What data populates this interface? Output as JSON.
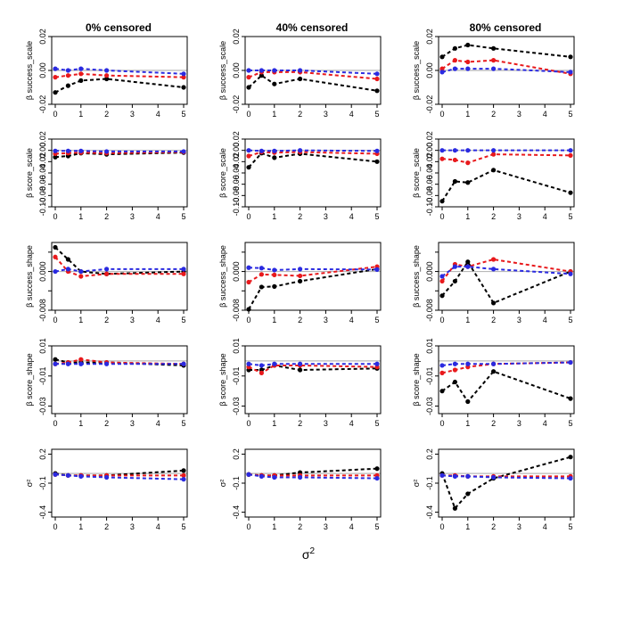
{
  "figure": {
    "column_titles": [
      "0% censored",
      "40% censored",
      "80% censored"
    ],
    "row_labels": [
      "β success_scale",
      "β score_scale",
      "β success_shape",
      "β score_shape",
      "σ²"
    ],
    "xlabel": "σ",
    "xlabel_superscript": "2"
  },
  "colors": {
    "series_black": "#000000",
    "series_red": "#e8191c",
    "series_blue": "#2a2ae0",
    "reference_line": "#b8b8b8",
    "frame": "#000000"
  },
  "chart_data": [
    {
      "type": "line",
      "row": 0,
      "col": 0,
      "title": "0% censored",
      "ylabel": "β success_scale",
      "x": [
        0,
        0.5,
        1,
        2,
        5
      ],
      "ylim": [
        -0.02,
        0.02
      ],
      "yticks": [
        -0.02,
        0.0,
        0.02
      ],
      "ytick_labels": [
        "-0.02",
        "0.00",
        "0.02"
      ],
      "xticks": [
        0,
        1,
        2,
        3,
        4,
        5
      ],
      "reference": 0,
      "series": [
        {
          "name": "black",
          "color": "#000000",
          "values": [
            -0.013,
            -0.009,
            -0.006,
            -0.005,
            -0.01
          ]
        },
        {
          "name": "red",
          "color": "#e8191c",
          "values": [
            -0.004,
            -0.003,
            -0.002,
            -0.003,
            -0.004
          ]
        },
        {
          "name": "blue",
          "color": "#2a2ae0",
          "values": [
            0.001,
            0.0,
            0.001,
            0.0,
            -0.002
          ]
        }
      ]
    },
    {
      "type": "line",
      "row": 0,
      "col": 1,
      "title": "40% censored",
      "ylabel": "β success_scale",
      "x": [
        0,
        0.5,
        1,
        2,
        5
      ],
      "ylim": [
        -0.02,
        0.02
      ],
      "yticks": [
        -0.02,
        0.0,
        0.02
      ],
      "ytick_labels": [
        "-0.02",
        "0.00",
        "0.02"
      ],
      "xticks": [
        0,
        1,
        2,
        3,
        4,
        5
      ],
      "reference": 0,
      "series": [
        {
          "name": "black",
          "color": "#000000",
          "values": [
            -0.01,
            -0.003,
            -0.008,
            -0.005,
            -0.012
          ]
        },
        {
          "name": "red",
          "color": "#e8191c",
          "values": [
            -0.004,
            -0.001,
            -0.001,
            -0.001,
            -0.005
          ]
        },
        {
          "name": "blue",
          "color": "#2a2ae0",
          "values": [
            0.0,
            0.0,
            0.0,
            0.0,
            -0.002
          ]
        }
      ]
    },
    {
      "type": "line",
      "row": 0,
      "col": 2,
      "title": "80% censored",
      "ylabel": "β success_scale",
      "x": [
        0,
        0.5,
        1,
        2,
        5
      ],
      "ylim": [
        -0.02,
        0.02
      ],
      "yticks": [
        -0.02,
        0.0,
        0.02
      ],
      "ytick_labels": [
        "-0.02",
        "0.00",
        "0.02"
      ],
      "xticks": [
        0,
        1,
        2,
        3,
        4,
        5
      ],
      "reference": 0,
      "series": [
        {
          "name": "black",
          "color": "#000000",
          "values": [
            0.008,
            0.013,
            0.015,
            0.013,
            0.008
          ]
        },
        {
          "name": "red",
          "color": "#e8191c",
          "values": [
            0.001,
            0.006,
            0.005,
            0.006,
            -0.002
          ]
        },
        {
          "name": "blue",
          "color": "#2a2ae0",
          "values": [
            -0.001,
            0.001,
            0.001,
            0.001,
            -0.001
          ]
        }
      ]
    },
    {
      "type": "line",
      "row": 1,
      "col": 0,
      "title": "0% censored",
      "ylabel": "β score_scale",
      "x": [
        0,
        0.5,
        1,
        2,
        5
      ],
      "ylim": [
        -0.1,
        0.02
      ],
      "yticks": [
        -0.1,
        -0.08,
        -0.06,
        -0.04,
        -0.02,
        0.0,
        0.02
      ],
      "ytick_labels": [
        "-0.10",
        "-0.08",
        "-0.06",
        "-0.04",
        "-0.02",
        "0.00",
        "0.02"
      ],
      "xticks": [
        0,
        1,
        2,
        3,
        4,
        5
      ],
      "reference": 0,
      "series": [
        {
          "name": "black",
          "color": "#000000",
          "values": [
            -0.012,
            -0.01,
            -0.005,
            -0.007,
            -0.004
          ]
        },
        {
          "name": "red",
          "color": "#e8191c",
          "values": [
            -0.006,
            -0.005,
            -0.004,
            -0.005,
            -0.003
          ]
        },
        {
          "name": "blue",
          "color": "#2a2ae0",
          "values": [
            -0.001,
            -0.001,
            -0.001,
            -0.002,
            -0.002
          ]
        }
      ]
    },
    {
      "type": "line",
      "row": 1,
      "col": 1,
      "title": "40% censored",
      "ylabel": "β score_scale",
      "x": [
        0,
        0.5,
        1,
        2,
        5
      ],
      "ylim": [
        -0.1,
        0.02
      ],
      "yticks": [
        -0.1,
        -0.08,
        -0.06,
        -0.04,
        -0.02,
        0.0,
        0.02
      ],
      "ytick_labels": [
        "-0.10",
        "-0.08",
        "-0.06",
        "-0.04",
        "-0.02",
        "0.00",
        "0.02"
      ],
      "xticks": [
        0,
        1,
        2,
        3,
        4,
        5
      ],
      "reference": 0,
      "series": [
        {
          "name": "black",
          "color": "#000000",
          "values": [
            -0.03,
            -0.005,
            -0.013,
            -0.006,
            -0.02
          ]
        },
        {
          "name": "red",
          "color": "#e8191c",
          "values": [
            -0.01,
            -0.003,
            -0.004,
            -0.003,
            -0.006
          ]
        },
        {
          "name": "blue",
          "color": "#2a2ae0",
          "values": [
            0.0,
            -0.001,
            -0.001,
            0.0,
            -0.001
          ]
        }
      ]
    },
    {
      "type": "line",
      "row": 1,
      "col": 2,
      "title": "80% censored",
      "ylabel": "β score_scale",
      "x": [
        0,
        0.5,
        1,
        2,
        5
      ],
      "ylim": [
        -0.1,
        0.02
      ],
      "yticks": [
        -0.1,
        -0.08,
        -0.06,
        -0.04,
        -0.02,
        0.0,
        0.02
      ],
      "ytick_labels": [
        "-0.10",
        "-0.08",
        "-0.06",
        "-0.04",
        "-0.02",
        "0.00",
        "0.02"
      ],
      "xticks": [
        0,
        1,
        2,
        3,
        4,
        5
      ],
      "reference": 0,
      "series": [
        {
          "name": "black",
          "color": "#000000",
          "values": [
            -0.09,
            -0.055,
            -0.057,
            -0.035,
            -0.075
          ]
        },
        {
          "name": "red",
          "color": "#e8191c",
          "values": [
            -0.015,
            -0.017,
            -0.022,
            -0.007,
            -0.009
          ]
        },
        {
          "name": "blue",
          "color": "#2a2ae0",
          "values": [
            0.0,
            0.0,
            0.0,
            0.0,
            0.0
          ]
        }
      ]
    },
    {
      "type": "line",
      "row": 2,
      "col": 0,
      "title": "0% censored",
      "ylabel": "β success_shape",
      "x": [
        0,
        0.5,
        1,
        2,
        5
      ],
      "ylim": [
        -0.008,
        0.006
      ],
      "yticks": [
        -0.008,
        -0.004,
        0.0,
        0.004
      ],
      "ytick_labels": [
        "-0.008",
        "",
        "0.000",
        ""
      ],
      "xticks": [
        0,
        1,
        2,
        3,
        4,
        5
      ],
      "reference": 0,
      "series": [
        {
          "name": "black",
          "color": "#000000",
          "values": [
            0.005,
            0.0025,
            0.0,
            -0.0005,
            0.0
          ]
        },
        {
          "name": "red",
          "color": "#e8191c",
          "values": [
            0.003,
            0.0,
            -0.001,
            -0.0005,
            -0.0005
          ]
        },
        {
          "name": "blue",
          "color": "#2a2ae0",
          "values": [
            0.0,
            0.0005,
            0.0,
            0.0005,
            0.0005
          ]
        }
      ]
    },
    {
      "type": "line",
      "row": 2,
      "col": 1,
      "title": "40% censored",
      "ylabel": "β success_shape",
      "x": [
        0,
        0.5,
        1,
        2,
        5
      ],
      "ylim": [
        -0.008,
        0.006
      ],
      "yticks": [
        -0.008,
        -0.004,
        0.0,
        0.004
      ],
      "ytick_labels": [
        "-0.008",
        "",
        "0.000",
        ""
      ],
      "xticks": [
        0,
        1,
        2,
        3,
        4,
        5
      ],
      "reference": 0,
      "series": [
        {
          "name": "black",
          "color": "#000000",
          "values": [
            -0.0078,
            -0.0032,
            -0.0031,
            -0.002,
            0.0005
          ]
        },
        {
          "name": "red",
          "color": "#e8191c",
          "values": [
            -0.0022,
            -0.0006,
            -0.0007,
            -0.0009,
            0.001
          ]
        },
        {
          "name": "blue",
          "color": "#2a2ae0",
          "values": [
            0.0008,
            0.0007,
            0.0003,
            0.0005,
            0.0004
          ]
        }
      ]
    },
    {
      "type": "line",
      "row": 2,
      "col": 2,
      "title": "80% censored",
      "ylabel": "β success_shape",
      "x": [
        0,
        0.5,
        1,
        2,
        5
      ],
      "ylim": [
        -0.008,
        0.006
      ],
      "yticks": [
        -0.008,
        -0.004,
        0.0,
        0.004
      ],
      "ytick_labels": [
        "-0.008",
        "",
        "0.000",
        ""
      ],
      "xticks": [
        0,
        1,
        2,
        3,
        4,
        5
      ],
      "reference": 0,
      "series": [
        {
          "name": "black",
          "color": "#000000",
          "values": [
            -0.005,
            -0.002,
            0.002,
            -0.0065,
            0.0
          ]
        },
        {
          "name": "red",
          "color": "#e8191c",
          "values": [
            -0.002,
            0.0015,
            0.001,
            0.0025,
            0.0
          ]
        },
        {
          "name": "blue",
          "color": "#2a2ae0",
          "values": [
            -0.001,
            0.001,
            0.001,
            0.0005,
            -0.0005
          ]
        }
      ]
    },
    {
      "type": "line",
      "row": 3,
      "col": 0,
      "title": "0% censored",
      "ylabel": "β score_shape",
      "x": [
        0,
        0.5,
        1,
        2,
        5
      ],
      "ylim": [
        -0.035,
        0.01
      ],
      "yticks": [
        -0.03,
        -0.01,
        0.01
      ],
      "ytick_labels": [
        "-0.03",
        "-0.01",
        "0.01"
      ],
      "xticks": [
        0,
        1,
        2,
        3,
        4,
        5
      ],
      "reference": 0,
      "series": [
        {
          "name": "black",
          "color": "#000000",
          "values": [
            0.001,
            -0.001,
            -0.001,
            -0.001,
            -0.003
          ]
        },
        {
          "name": "red",
          "color": "#e8191c",
          "values": [
            -0.002,
            -0.001,
            0.001,
            -0.001,
            -0.002
          ]
        },
        {
          "name": "blue",
          "color": "#2a2ae0",
          "values": [
            -0.002,
            -0.002,
            -0.002,
            -0.002,
            -0.002
          ]
        }
      ]
    },
    {
      "type": "line",
      "row": 3,
      "col": 1,
      "title": "40% censored",
      "ylabel": "β score_shape",
      "x": [
        0,
        0.5,
        1,
        2,
        5
      ],
      "ylim": [
        -0.035,
        0.01
      ],
      "yticks": [
        -0.03,
        -0.01,
        0.01
      ],
      "ytick_labels": [
        "-0.03",
        "-0.01",
        "0.01"
      ],
      "xticks": [
        0,
        1,
        2,
        3,
        4,
        5
      ],
      "reference": 0,
      "series": [
        {
          "name": "black",
          "color": "#000000",
          "values": [
            -0.006,
            -0.006,
            -0.003,
            -0.006,
            -0.005
          ]
        },
        {
          "name": "red",
          "color": "#e8191c",
          "values": [
            -0.004,
            -0.008,
            -0.003,
            -0.003,
            -0.004
          ]
        },
        {
          "name": "blue",
          "color": "#2a2ae0",
          "values": [
            -0.002,
            -0.003,
            -0.002,
            -0.002,
            -0.002
          ]
        }
      ]
    },
    {
      "type": "line",
      "row": 3,
      "col": 2,
      "title": "80% censored",
      "ylabel": "β score_shape",
      "x": [
        0,
        0.5,
        1,
        2,
        5
      ],
      "ylim": [
        -0.035,
        0.01
      ],
      "yticks": [
        -0.03,
        -0.01,
        0.01
      ],
      "ytick_labels": [
        "-0.03",
        "-0.01",
        "0.01"
      ],
      "xticks": [
        0,
        1,
        2,
        3,
        4,
        5
      ],
      "reference": 0,
      "series": [
        {
          "name": "black",
          "color": "#000000",
          "values": [
            -0.02,
            -0.014,
            -0.027,
            -0.007,
            -0.025
          ]
        },
        {
          "name": "red",
          "color": "#e8191c",
          "values": [
            -0.008,
            -0.006,
            -0.004,
            -0.002,
            -0.001
          ]
        },
        {
          "name": "blue",
          "color": "#2a2ae0",
          "values": [
            -0.003,
            -0.002,
            -0.002,
            -0.002,
            -0.001
          ]
        }
      ]
    },
    {
      "type": "line",
      "row": 4,
      "col": 0,
      "title": "0% censored",
      "ylabel": "σ²",
      "x": [
        0,
        0.5,
        1,
        2,
        5
      ],
      "ylim": [
        -0.45,
        0.25
      ],
      "yticks": [
        -0.4,
        -0.1,
        0.2
      ],
      "ytick_labels": [
        "-0.4",
        "-0.1",
        "0.2"
      ],
      "xticks": [
        0,
        1,
        2,
        3,
        4,
        5
      ],
      "reference": 0,
      "series": [
        {
          "name": "black",
          "color": "#000000",
          "values": [
            0.0,
            -0.02,
            -0.02,
            -0.02,
            0.03
          ]
        },
        {
          "name": "red",
          "color": "#e8191c",
          "values": [
            -0.01,
            -0.02,
            -0.02,
            -0.02,
            -0.02
          ]
        },
        {
          "name": "blue",
          "color": "#2a2ae0",
          "values": [
            -0.01,
            -0.02,
            -0.03,
            -0.04,
            -0.06
          ]
        }
      ]
    },
    {
      "type": "line",
      "row": 4,
      "col": 1,
      "title": "40% censored",
      "ylabel": "σ²",
      "x": [
        0,
        0.5,
        1,
        2,
        5
      ],
      "ylim": [
        -0.45,
        0.25
      ],
      "yticks": [
        -0.4,
        -0.1,
        0.2
      ],
      "ytick_labels": [
        "-0.4",
        "-0.1",
        "0.2"
      ],
      "xticks": [
        0,
        1,
        2,
        3,
        4,
        5
      ],
      "reference": 0,
      "series": [
        {
          "name": "black",
          "color": "#000000",
          "values": [
            -0.01,
            -0.02,
            -0.02,
            0.01,
            0.05
          ]
        },
        {
          "name": "red",
          "color": "#e8191c",
          "values": [
            -0.01,
            -0.02,
            -0.02,
            -0.02,
            -0.02
          ]
        },
        {
          "name": "blue",
          "color": "#2a2ae0",
          "values": [
            -0.01,
            -0.03,
            -0.04,
            -0.04,
            -0.05
          ]
        }
      ]
    },
    {
      "type": "line",
      "row": 4,
      "col": 2,
      "title": "80% censored",
      "ylabel": "σ²",
      "x": [
        0,
        0.5,
        1,
        2,
        5
      ],
      "ylim": [
        -0.45,
        0.25
      ],
      "yticks": [
        -0.4,
        -0.1,
        0.2
      ],
      "ytick_labels": [
        "-0.4",
        "-0.1",
        "0.2"
      ],
      "xticks": [
        0,
        1,
        2,
        3,
        4,
        5
      ],
      "reference": 0,
      "series": [
        {
          "name": "black",
          "color": "#000000",
          "values": [
            0.0,
            -0.36,
            -0.21,
            -0.05,
            0.17
          ]
        },
        {
          "name": "red",
          "color": "#e8191c",
          "values": [
            -0.02,
            -0.02,
            -0.03,
            -0.03,
            -0.03
          ]
        },
        {
          "name": "blue",
          "color": "#2a2ae0",
          "values": [
            -0.02,
            -0.03,
            -0.03,
            -0.04,
            -0.05
          ]
        }
      ]
    }
  ]
}
